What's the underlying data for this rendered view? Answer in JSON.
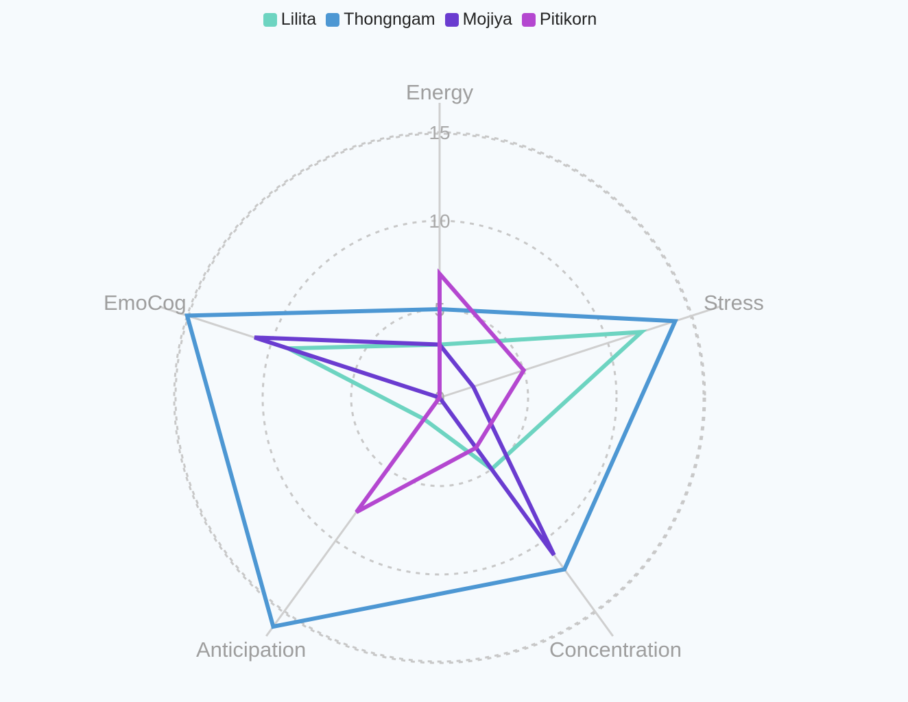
{
  "chart_data": {
    "type": "radar",
    "axes": [
      "Energy",
      "Stress",
      "Concentration",
      "Anticipation",
      "EmoCog"
    ],
    "ticks": [
      "0",
      "5",
      "10",
      "15"
    ],
    "range": [
      0,
      15
    ],
    "legend_position": "top-center",
    "grid": true,
    "series": [
      {
        "name": "Lilita",
        "color": "#6dd4c1",
        "values": [
          3,
          12,
          5,
          1.5,
          9
        ]
      },
      {
        "name": "Thongngam",
        "color": "#4d97d3",
        "values": [
          5,
          14,
          12,
          16,
          15
        ]
      },
      {
        "name": "Mojiya",
        "color": "#6a3cd0",
        "values": [
          3,
          2,
          11,
          0,
          11
        ]
      },
      {
        "name": "Pitikorn",
        "color": "#b447d0",
        "values": [
          7,
          5,
          3.5,
          8,
          0
        ]
      }
    ]
  }
}
